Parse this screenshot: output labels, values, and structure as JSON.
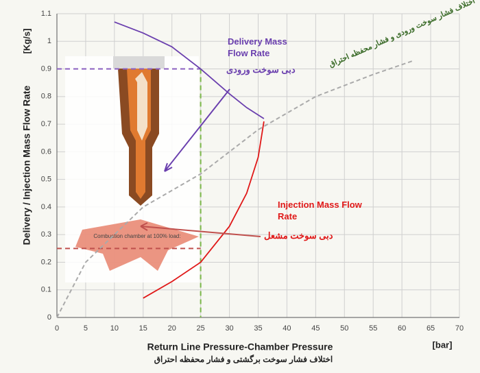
{
  "chart_data": {
    "type": "line",
    "y_label": "Delivery / Injection Mass Flow Rate",
    "y_unit": "[Kg/s]",
    "x_label": "Return Line Pressure-Chamber Pressure",
    "x_unit": "[bar]",
    "subtitle": "اختلاف فشار سوخت برگشتی و فشار محفظه احتراق",
    "xlim": [
      0,
      70
    ],
    "ylim": [
      0,
      1.1
    ],
    "xticks": [
      0,
      5,
      10,
      15,
      20,
      25,
      30,
      35,
      40,
      45,
      50,
      55,
      60,
      65,
      70
    ],
    "yticks": [
      0,
      0.1,
      0.2,
      0.3,
      0.4,
      0.5,
      0.6,
      0.7,
      0.8,
      0.9,
      1,
      1.1
    ],
    "grid": true,
    "series": [
      {
        "name": "Delivery Mass Flow Rate",
        "persian_name": "دبی سوخت ورودی",
        "color": "#6a3fae",
        "x": [
          10,
          15,
          20,
          25,
          30,
          33,
          36
        ],
        "values": [
          1.07,
          1.03,
          0.98,
          0.9,
          0.81,
          0.76,
          0.72
        ]
      },
      {
        "name": "Injection Mass Flow Rate",
        "persian_name": "دبی سوخت مشعل",
        "color": "#e01818",
        "x": [
          15,
          20,
          25,
          30,
          33,
          35,
          36
        ],
        "values": [
          0.07,
          0.13,
          0.2,
          0.33,
          0.45,
          0.58,
          0.71
        ]
      },
      {
        "name": "اختلاف فشار سوخت ورودی و فشار محفظه احتراق",
        "color": "#aaaaaa",
        "dashed": true,
        "x": [
          0,
          5,
          15,
          25,
          35,
          45,
          55,
          62
        ],
        "values": [
          0,
          0.2,
          0.4,
          0.52,
          0.68,
          0.8,
          0.88,
          0.93
        ]
      }
    ],
    "guides": [
      {
        "axis": "y",
        "value": 0.9,
        "color": "#8a5fc0"
      },
      {
        "axis": "y",
        "value": 0.25,
        "color": "#c0504d"
      },
      {
        "axis": "x",
        "value": 25,
        "color": "#7ab648"
      }
    ],
    "inset_caption": "Combustion chamber at 100% load:"
  }
}
